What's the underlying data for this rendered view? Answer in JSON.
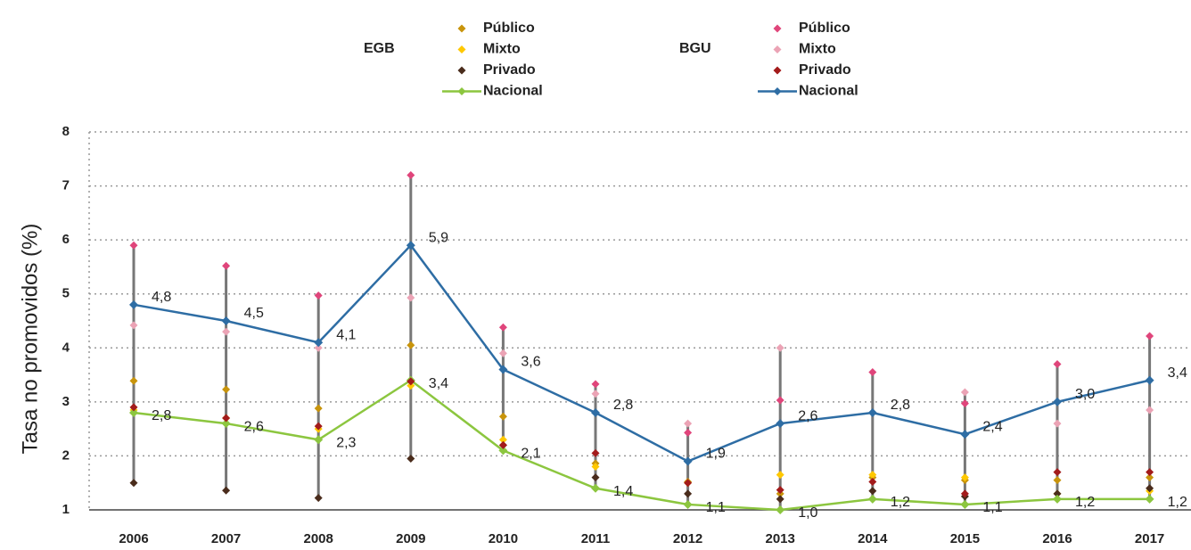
{
  "chart_data": {
    "type": "line",
    "y_label": "Tasa no promovidos (%)",
    "legend_groups": [
      "EGB",
      "BGU"
    ],
    "categories": [
      "2006",
      "2007",
      "2008",
      "2009",
      "2010",
      "2011",
      "2012",
      "2013",
      "2014",
      "2015",
      "2016",
      "2017"
    ],
    "ylim": [
      1,
      8
    ],
    "yticks": [
      1,
      2,
      3,
      4,
      5,
      6,
      7,
      8
    ],
    "grid": true,
    "series": [
      {
        "name": "Público",
        "color": "#c8940c",
        "values": [
          3.39,
          3.23,
          2.88,
          4.05,
          2.73,
          1.86,
          1.52,
          1.3,
          1.6,
          1.55,
          1.55,
          1.6
        ]
      },
      {
        "name": "Mixto",
        "color": "#ffc800",
        "values": [
          2.85,
          2.7,
          2.5,
          3.3,
          2.3,
          1.8,
          1.5,
          1.65,
          1.65,
          1.6,
          1.3,
          1.35
        ]
      },
      {
        "name": "Privado",
        "color": "#4a2c1c",
        "values": [
          1.5,
          1.36,
          1.22,
          1.95,
          2.2,
          1.6,
          1.3,
          1.2,
          1.35,
          1.25,
          1.3,
          1.4
        ]
      },
      {
        "name": "Nacional",
        "color": "#8cc63f",
        "line": true,
        "values": [
          2.8,
          2.6,
          2.3,
          3.4,
          2.1,
          1.4,
          1.1,
          1.0,
          1.2,
          1.1,
          1.2,
          1.2
        ],
        "value_labels": [
          "2,8",
          "2,6",
          "2,3",
          "3,4",
          "2,1",
          "1,4",
          "1,1",
          "1,0",
          "1,2",
          "1,1",
          "1,2",
          "1,2"
        ]
      },
      {
        "name": "Público",
        "color": "#e0457b",
        "values": [
          5.9,
          5.52,
          4.97,
          7.2,
          4.38,
          3.33,
          2.43,
          3.03,
          3.55,
          2.97,
          3.7,
          4.22
        ]
      },
      {
        "name": "Mixto",
        "color": "#eba3b5",
        "values": [
          4.42,
          4.3,
          4.0,
          4.93,
          3.9,
          3.15,
          2.6,
          4.0,
          2.8,
          3.18,
          2.6,
          2.85
        ]
      },
      {
        "name": "Privado",
        "color": "#a31b1b",
        "values": [
          2.9,
          2.7,
          2.55,
          3.38,
          2.2,
          2.05,
          1.5,
          1.37,
          1.52,
          1.3,
          1.7,
          1.7
        ]
      },
      {
        "name": "Nacional",
        "color": "#2e6da4",
        "line": true,
        "values": [
          4.8,
          4.5,
          4.1,
          5.9,
          3.6,
          2.8,
          1.9,
          2.6,
          2.8,
          2.4,
          3.0,
          3.4
        ],
        "value_labels": [
          "4,8",
          "4,5",
          "4,1",
          "5,9",
          "3,6",
          "2,8",
          "1,9",
          "2,6",
          "2,8",
          "2,4",
          "3,0",
          "3,4"
        ]
      }
    ]
  }
}
